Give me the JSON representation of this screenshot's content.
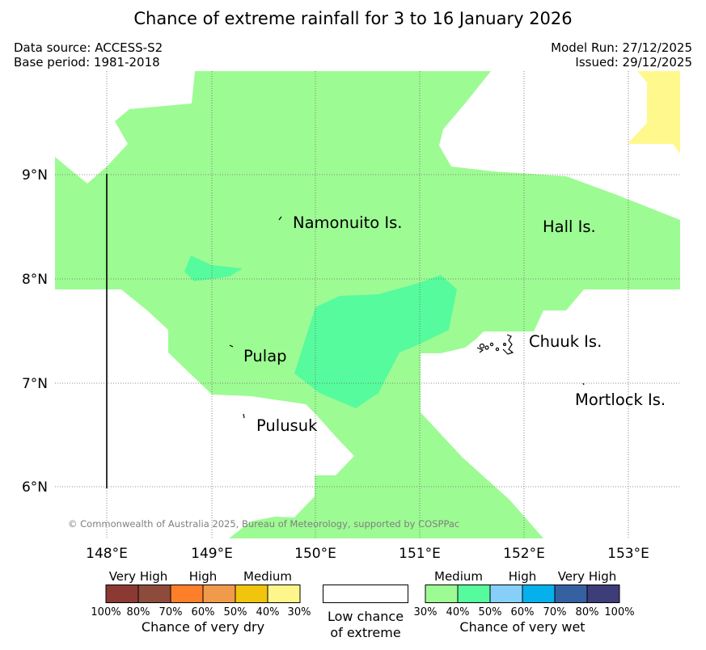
{
  "title": "Chance of extreme rainfall for 3 to 16 January 2026",
  "meta": {
    "data_source": "Data source: ACCESS-S2",
    "base_period": "Base period: 1981-2018",
    "model_run": "Model Run: 27/12/2025",
    "issued": "Issued: 29/12/2025"
  },
  "map": {
    "copyright": "© Commonwealth of Australia 2025, Bureau of Meteorology, supported by COSPPac",
    "lon_ticks": [
      "148°E",
      "149°E",
      "150°E",
      "151°E",
      "152°E",
      "153°E"
    ],
    "lat_ticks": [
      "9°N",
      "8°N",
      "7°N",
      "6°N"
    ],
    "places": [
      "Namonuito Is.",
      "Hall Is.",
      "Pulap",
      "Chuuk Is.",
      "Pulusuk",
      "Mortlock Is."
    ],
    "colors": {
      "wet_30_40": "#9dfb93",
      "wet_40_50": "#56fb9d",
      "dry_30_40": "#fff88c"
    }
  },
  "legend": {
    "dry": {
      "headers": [
        "Very High",
        "High",
        "Medium"
      ],
      "ticks": [
        "100%",
        "80%",
        "70%",
        "60%",
        "50%",
        "40%",
        "30%"
      ],
      "caption": "Chance of very dry",
      "colors": [
        "#8b3a33",
        "#8d4b3c",
        "#fd7f2a",
        "#f09a4b",
        "#f1c40d",
        "#fef68a"
      ]
    },
    "neutral": {
      "line1": "Low chance",
      "line2": "of extreme"
    },
    "wet": {
      "headers": [
        "Medium",
        "High",
        "Very High"
      ],
      "ticks": [
        "30%",
        "40%",
        "50%",
        "60%",
        "70%",
        "80%",
        "100%"
      ],
      "caption": "Chance of very wet",
      "colors": [
        "#9dfb93",
        "#56fb9d",
        "#85cff8",
        "#06b0ec",
        "#3561a3",
        "#3d3d79"
      ]
    }
  }
}
